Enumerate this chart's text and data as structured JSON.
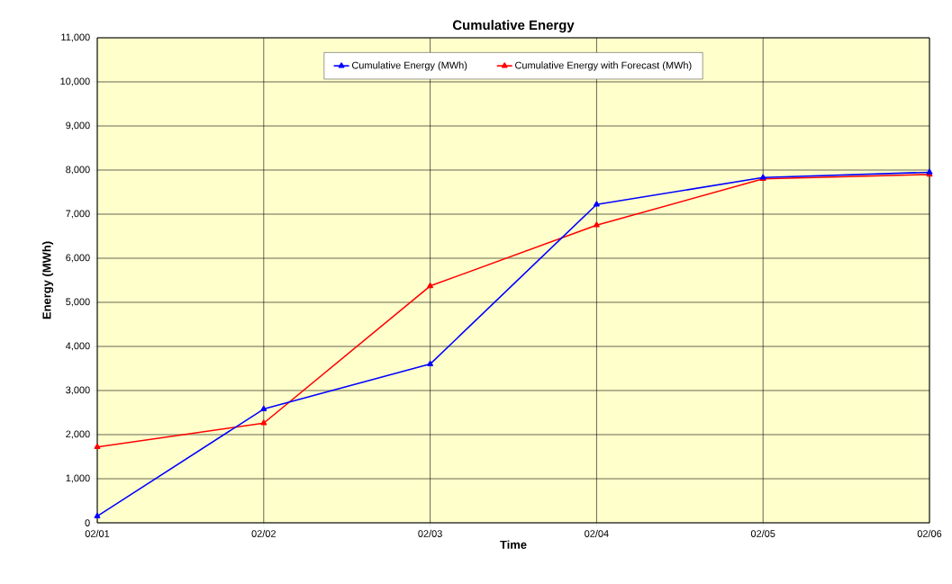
{
  "chart_data": {
    "type": "line",
    "title": "Cumulative Energy",
    "xlabel": "Time",
    "ylabel": "Energy (MWh)",
    "categories": [
      "02/01",
      "02/02",
      "02/03",
      "02/04",
      "02/05",
      "02/06"
    ],
    "series": [
      {
        "name": "Cumulative Energy (MWh)",
        "color": "#0000ff",
        "values": [
          150,
          2580,
          3600,
          7220,
          7830,
          7950
        ]
      },
      {
        "name": "Cumulative Energy with Forecast (MWh)",
        "color": "#ff0000",
        "values": [
          1720,
          2260,
          5370,
          6750,
          7800,
          7900
        ]
      }
    ],
    "ylim": [
      0,
      11000
    ],
    "yticks": [
      {
        "value": 0,
        "label": "0"
      },
      {
        "value": 1000,
        "label": "1,000"
      },
      {
        "value": 2000,
        "label": "2,000"
      },
      {
        "value": 3000,
        "label": "3,000"
      },
      {
        "value": 4000,
        "label": "4,000"
      },
      {
        "value": 5000,
        "label": "5,000"
      },
      {
        "value": 6000,
        "label": "6,000"
      },
      {
        "value": 7000,
        "label": "7,000"
      },
      {
        "value": 8000,
        "label": "8,000"
      },
      {
        "value": 9000,
        "label": "9,000"
      },
      {
        "value": 10000,
        "label": "10,000"
      },
      {
        "value": 11000,
        "label": "11,000"
      }
    ],
    "grid": true,
    "legend": "top",
    "marker": "triangle",
    "line_style": "solid"
  }
}
